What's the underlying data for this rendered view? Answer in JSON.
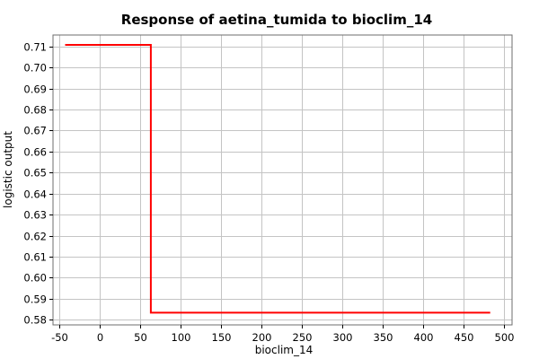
{
  "chart_data": {
    "type": "line",
    "title": "Response of aetina_tumida to bioclim_14",
    "xlabel": "bioclim_14",
    "ylabel": "logistic output",
    "xlim": [
      -58,
      510
    ],
    "ylim": [
      0.5775,
      0.7155
    ],
    "x_ticks": [
      -50,
      0,
      50,
      100,
      150,
      200,
      250,
      300,
      350,
      400,
      450,
      500
    ],
    "y_ticks": [
      0.58,
      0.59,
      0.6,
      0.61,
      0.62,
      0.63,
      0.64,
      0.65,
      0.66,
      0.67,
      0.68,
      0.69,
      0.7,
      0.71
    ],
    "y_tick_labels": [
      "0.58",
      "0.59",
      "0.60",
      "0.61",
      "0.62",
      "0.63",
      "0.64",
      "0.65",
      "0.66",
      "0.67",
      "0.68",
      "0.69",
      "0.70",
      "0.71"
    ],
    "grid": true,
    "series": [
      {
        "color": "#ff0000",
        "x": [
          -43,
          63,
          63,
          483
        ],
        "y": [
          0.7108,
          0.7108,
          0.5833,
          0.5833
        ]
      }
    ]
  }
}
